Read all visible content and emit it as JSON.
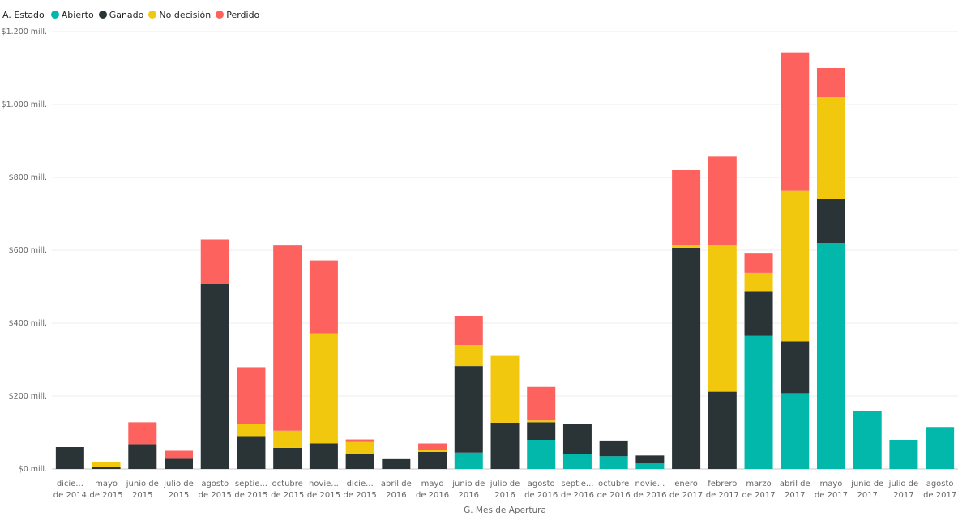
{
  "legend": {
    "title": "A. Estado",
    "items": [
      {
        "label": "Abierto",
        "color": "#01B8AA"
      },
      {
        "label": "Ganado",
        "color": "#2A3436"
      },
      {
        "label": "No decisión",
        "color": "#F2C80F"
      },
      {
        "label": "Perdido",
        "color": "#FD625E"
      }
    ]
  },
  "chart_data": {
    "type": "bar",
    "stacked": true,
    "title": "",
    "xlabel": "G. Mes de Apertura",
    "ylabel": "",
    "ylim": [
      0,
      1200
    ],
    "yticks": [
      {
        "value": 0,
        "label": "$0 mill."
      },
      {
        "value": 200,
        "label": "$200 mill."
      },
      {
        "value": 400,
        "label": "$400 mill."
      },
      {
        "value": 600,
        "label": "$600 mill."
      },
      {
        "value": 800,
        "label": "$800 mill."
      },
      {
        "value": 1000,
        "label": "$1.000 mill."
      },
      {
        "value": 1200,
        "label": "$1.200 mill."
      }
    ],
    "grid": true,
    "legend_position": "top-left",
    "categories": [
      [
        "dicie...",
        "de 2014"
      ],
      [
        "mayo",
        "de 2015"
      ],
      [
        "junio de",
        "2015"
      ],
      [
        "julio de",
        "2015"
      ],
      [
        "agosto",
        "de 2015"
      ],
      [
        "septie...",
        "de 2015"
      ],
      [
        "octubre",
        "de 2015"
      ],
      [
        "novie...",
        "de 2015"
      ],
      [
        "dicie...",
        "de 2015"
      ],
      [
        "abril de",
        "2016"
      ],
      [
        "mayo",
        "de 2016"
      ],
      [
        "junio de",
        "2016"
      ],
      [
        "julio de",
        "2016"
      ],
      [
        "agosto",
        "de 2016"
      ],
      [
        "septie...",
        "de 2016"
      ],
      [
        "octubre",
        "de 2016"
      ],
      [
        "novie...",
        "de 2016"
      ],
      [
        "enero",
        "de 2017"
      ],
      [
        "febrero",
        "de 2017"
      ],
      [
        "marzo",
        "de 2017"
      ],
      [
        "abril de",
        "2017"
      ],
      [
        "mayo",
        "de 2017"
      ],
      [
        "junio de",
        "2017"
      ],
      [
        "julio de",
        "2017"
      ],
      [
        "agosto",
        "de 2017"
      ]
    ],
    "series": [
      {
        "name": "Abierto",
        "color": "#01B8AA",
        "values": [
          0,
          0,
          0,
          0,
          0,
          0,
          0,
          0,
          0,
          0,
          0,
          45,
          0,
          80,
          40,
          35,
          15,
          0,
          0,
          365,
          208,
          620,
          160,
          80,
          115
        ]
      },
      {
        "name": "Ganado",
        "color": "#2A3436",
        "values": [
          60,
          5,
          68,
          28,
          507,
          90,
          58,
          70,
          42,
          27,
          47,
          237,
          127,
          48,
          83,
          43,
          22,
          607,
          212,
          123,
          142,
          120,
          0,
          0,
          0
        ]
      },
      {
        "name": "No decisión",
        "color": "#F2C80F",
        "values": [
          0,
          15,
          0,
          0,
          0,
          34,
          47,
          302,
          32,
          0,
          5,
          58,
          185,
          5,
          0,
          0,
          0,
          8,
          403,
          50,
          413,
          280,
          0,
          0,
          0
        ]
      },
      {
        "name": "Perdido",
        "color": "#FD625E",
        "values": [
          0,
          0,
          60,
          22,
          123,
          155,
          508,
          200,
          7,
          0,
          18,
          80,
          0,
          92,
          0,
          0,
          0,
          205,
          242,
          55,
          380,
          80,
          0,
          0,
          0
        ]
      }
    ]
  }
}
